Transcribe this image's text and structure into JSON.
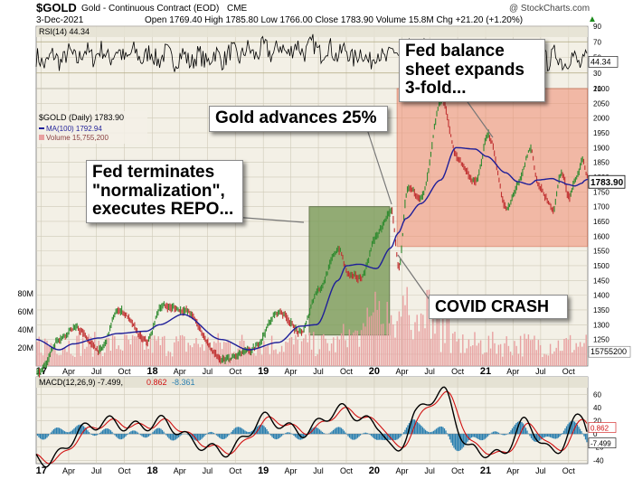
{
  "header": {
    "symbol": "$GOLD",
    "description": "Gold - Continuous Contract (EOD)",
    "exchange": "CME",
    "watermark": "@ StockCharts.com",
    "date": "3-Dec-2021",
    "quote": "Open 1769.40  High 1785.80  Low 1766.00  Close 1783.90  Volume 15.8M  Chg +21.20 (+1.20%)",
    "quote_icon": "up-triangle-icon"
  },
  "colors": {
    "panel_bg": "#f3f0e6",
    "header_bg": "#e5e2d4",
    "price_up": "#2f8a2f",
    "price_down": "#c03030",
    "ma_line": "#1f1f99",
    "volume_bar": "#e8a0a0",
    "rsi_line": "#000000",
    "macd_line": "#000000",
    "signal_line": "#d01010",
    "histogram": "#2a7fb0",
    "green_box": "#7a9b58",
    "red_box": "#f08c70"
  },
  "annotations": {
    "fed_terminates": "Fed terminates \"normalization\", executes REPO...",
    "gold_advances": "Gold advances 25%",
    "fed_balance": "Fed balance sheet expands 3-fold...",
    "covid_crash": "COVID CRASH"
  },
  "chart_data": [
    {
      "type": "line",
      "panel": "RSI",
      "legend": "RSI(14) 44.34",
      "last_value_label": "44.34",
      "ylim": [
        10,
        90
      ],
      "y_ticks": [
        10,
        30,
        50,
        70,
        90
      ],
      "reference_lines": [
        30,
        70
      ],
      "grid": true,
      "x": [
        "2016-12",
        "2017-06",
        "2017-12",
        "2018-06",
        "2018-12",
        "2019-06",
        "2019-12",
        "2020-06",
        "2020-12",
        "2021-06",
        "2021-12"
      ],
      "values": [
        45,
        55,
        52,
        48,
        58,
        62,
        50,
        58,
        48,
        52,
        44
      ]
    },
    {
      "type": "line",
      "panel": "Price",
      "title": "$GOLD (Daily) 1783.90",
      "legend_entries": [
        "$GOLD (Daily) 1783.90",
        "MA(100) 1792.94",
        "Volume 15,755,200"
      ],
      "last_value_label": "1783.90",
      "ylim": [
        1160,
        2100
      ],
      "y_ticks": [
        1200,
        1250,
        1300,
        1350,
        1400,
        1450,
        1500,
        1550,
        1600,
        1650,
        1700,
        1750,
        1800,
        1850,
        1900,
        1950,
        2000,
        2050,
        2100
      ],
      "volume_ticks": [
        "20M",
        "40M",
        "60M",
        "80M"
      ],
      "volume_last_label": "15755200",
      "grid": true,
      "x": [
        "2016-12-15",
        "2017-03-01",
        "2017-04-15",
        "2017-07-10",
        "2017-09-08",
        "2017-12-12",
        "2018-01-25",
        "2018-04-11",
        "2018-08-16",
        "2018-11-15",
        "2019-02-20",
        "2019-05-02",
        "2019-06-25",
        "2019-09-04",
        "2019-10-01",
        "2019-11-12",
        "2020-01-08",
        "2020-02-24",
        "2020-03-19",
        "2020-04-14",
        "2020-06-01",
        "2020-08-06",
        "2020-09-25",
        "2020-11-27",
        "2021-01-05",
        "2021-03-08",
        "2021-04-15",
        "2021-05-27",
        "2021-06-18",
        "2021-08-09",
        "2021-09-03",
        "2021-09-29",
        "2021-10-21",
        "2021-11-16",
        "2021-11-24",
        "2021-12-03"
      ],
      "series": [
        {
          "name": "$GOLD (Daily)",
          "values": [
            1130,
            1258,
            1290,
            1212,
            1352,
            1240,
            1365,
            1350,
            1178,
            1210,
            1345,
            1270,
            1420,
            1560,
            1470,
            1455,
            1610,
            1690,
            1470,
            1770,
            1730,
            2070,
            1860,
            1780,
            1950,
            1685,
            1780,
            1905,
            1765,
            1690,
            1830,
            1725,
            1800,
            1870,
            1790,
            1783.9
          ]
        },
        {
          "name": "MA(100)",
          "values": [
            1250,
            1215,
            1235,
            1255,
            1270,
            1278,
            1300,
            1335,
            1250,
            1215,
            1240,
            1295,
            1300,
            1450,
            1500,
            1505,
            1490,
            1560,
            1610,
            1660,
            1710,
            1790,
            1900,
            1895,
            1870,
            1815,
            1785,
            1775,
            1790,
            1795,
            1785,
            1775,
            1770,
            1780,
            1790,
            1792.94
          ]
        }
      ]
    },
    {
      "type": "line",
      "panel": "MACD",
      "legend": "MACD(12,26,9) -7.499, 0.862, -8.361",
      "macd_last_label": "-7.499",
      "signal_last_label": "0.862",
      "ylim": [
        -45,
        70
      ],
      "y_ticks": [
        -40,
        -20,
        0,
        20,
        40,
        60
      ],
      "grid": true,
      "x": [
        "2017-01",
        "2017-05",
        "2017-09",
        "2018-01",
        "2018-05",
        "2018-09",
        "2019-01",
        "2019-05",
        "2019-09",
        "2020-01",
        "2020-03",
        "2020-05",
        "2020-08",
        "2020-11",
        "2021-02",
        "2021-05",
        "2021-08",
        "2021-11",
        "2021-12"
      ],
      "series": [
        {
          "name": "MACD",
          "values": [
            -38,
            5,
            15,
            20,
            -15,
            -20,
            18,
            10,
            30,
            20,
            -30,
            25,
            65,
            -20,
            -40,
            20,
            -25,
            20,
            -7.5
          ]
        },
        {
          "name": "Signal",
          "values": [
            -30,
            3,
            12,
            17,
            -12,
            -18,
            14,
            9,
            27,
            19,
            -18,
            20,
            55,
            -15,
            -33,
            15,
            -20,
            15,
            0.862
          ]
        },
        {
          "name": "Histogram",
          "values": [
            -8,
            2,
            3,
            3,
            -3,
            -2,
            4,
            1,
            3,
            1,
            -12,
            5,
            10,
            -5,
            -7,
            5,
            -5,
            5,
            -8.361
          ]
        }
      ]
    }
  ],
  "x_axis_labels": [
    "17",
    "Apr",
    "Jul",
    "Oct",
    "18",
    "Apr",
    "Jul",
    "Oct",
    "19",
    "Apr",
    "Jul",
    "Oct",
    "20",
    "Apr",
    "Jul",
    "Oct",
    "21",
    "Apr",
    "Jul",
    "Oct"
  ]
}
